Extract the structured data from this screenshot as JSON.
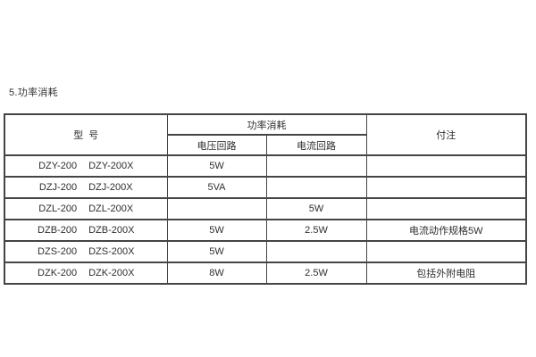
{
  "page": {
    "title": "5.功率消耗"
  },
  "colors": {
    "background": "#ffffff",
    "text": "#2e2e2e",
    "border": "#454545"
  },
  "table": {
    "header": {
      "model": "型  号",
      "power_group": "功率消耗",
      "voltage_circuit": "电压回路",
      "current_circuit": "电流回路",
      "notes": "付注"
    },
    "rows": [
      {
        "model_a": "DZY-200",
        "model_b": "DZY-200X",
        "voltage": "5W",
        "current": "",
        "note": ""
      },
      {
        "model_a": "DZJ-200",
        "model_b": "DZJ-200X",
        "voltage": "5VA",
        "current": "",
        "note": ""
      },
      {
        "model_a": "DZL-200",
        "model_b": "DZL-200X",
        "voltage": "",
        "current": "5W",
        "note": ""
      },
      {
        "model_a": "DZB-200",
        "model_b": "DZB-200X",
        "voltage": "5W",
        "current": "2.5W",
        "note": "电流动作规格5W"
      },
      {
        "model_a": "DZS-200",
        "model_b": "DZS-200X",
        "voltage": "5W",
        "current": "",
        "note": ""
      },
      {
        "model_a": "DZK-200",
        "model_b": "DZK-200X",
        "voltage": "8W",
        "current": "2.5W",
        "note": "包括外附电阻"
      }
    ]
  }
}
